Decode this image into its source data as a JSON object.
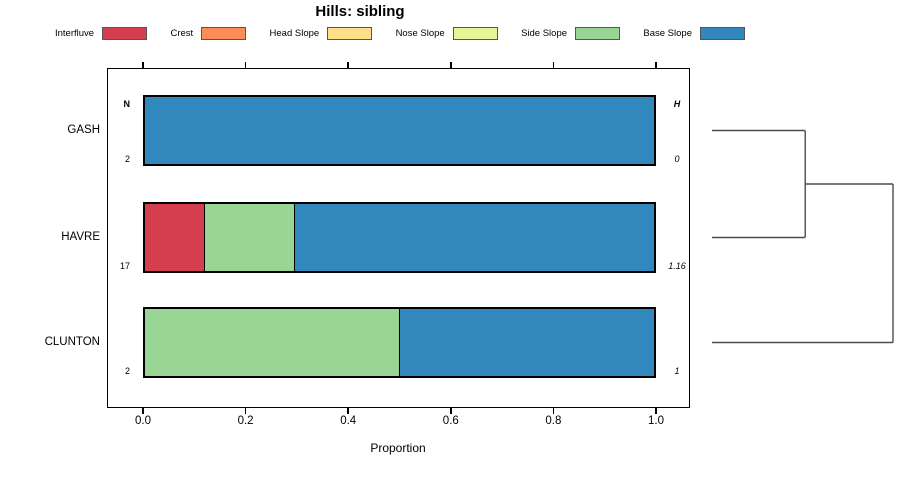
{
  "title": "Hills: sibling",
  "legend": {
    "items": [
      {
        "label": "Interfluve",
        "color": "#d53e4f"
      },
      {
        "label": "Crest",
        "color": "#fc8d59"
      },
      {
        "label": "Head Slope",
        "color": "#fee08b"
      },
      {
        "label": "Nose Slope",
        "color": "#e6f598"
      },
      {
        "label": "Side Slope",
        "color": "#99d594"
      },
      {
        "label": "Base Slope",
        "color": "#3288bd"
      }
    ]
  },
  "chart_data": {
    "type": "bar",
    "orientation": "horizontal",
    "stacked": true,
    "title": "Hills: sibling",
    "xlabel": "Proportion",
    "xlim": [
      0,
      1
    ],
    "xticks": [
      "0.0",
      "0.2",
      "0.4",
      "0.6",
      "0.8",
      "1.0"
    ],
    "grid": false,
    "axis_ticks_mirrored_top": true,
    "categories": [
      "GASH",
      "HAVRE",
      "CLUNTON"
    ],
    "left_annotation_header": "N",
    "right_annotation_header": "H",
    "rows": [
      {
        "category": "GASH",
        "n": "2",
        "h": "0",
        "segments": [
          {
            "name": "Base Slope",
            "value": 1.0
          }
        ]
      },
      {
        "category": "HAVRE",
        "n": "17",
        "h": "1.16",
        "segments": [
          {
            "name": "Interfluve",
            "value": 0.118
          },
          {
            "name": "Side Slope",
            "value": 0.176
          },
          {
            "name": "Base Slope",
            "value": 0.706
          }
        ]
      },
      {
        "category": "CLUNTON",
        "n": "2",
        "h": "1",
        "segments": [
          {
            "name": "Side Slope",
            "value": 0.5
          },
          {
            "name": "Base Slope",
            "value": 0.5
          }
        ]
      }
    ],
    "dendrogram": {
      "leaf_order": [
        "GASH",
        "HAVRE",
        "CLUNTON"
      ],
      "merges": [
        {
          "members": [
            "GASH",
            "HAVRE"
          ],
          "height_frac": 0.515
        },
        {
          "members": [
            "GASH+HAVRE",
            "CLUNTON"
          ],
          "height_frac": 1.0
        }
      ],
      "line_color": "#4d4d4d"
    }
  }
}
